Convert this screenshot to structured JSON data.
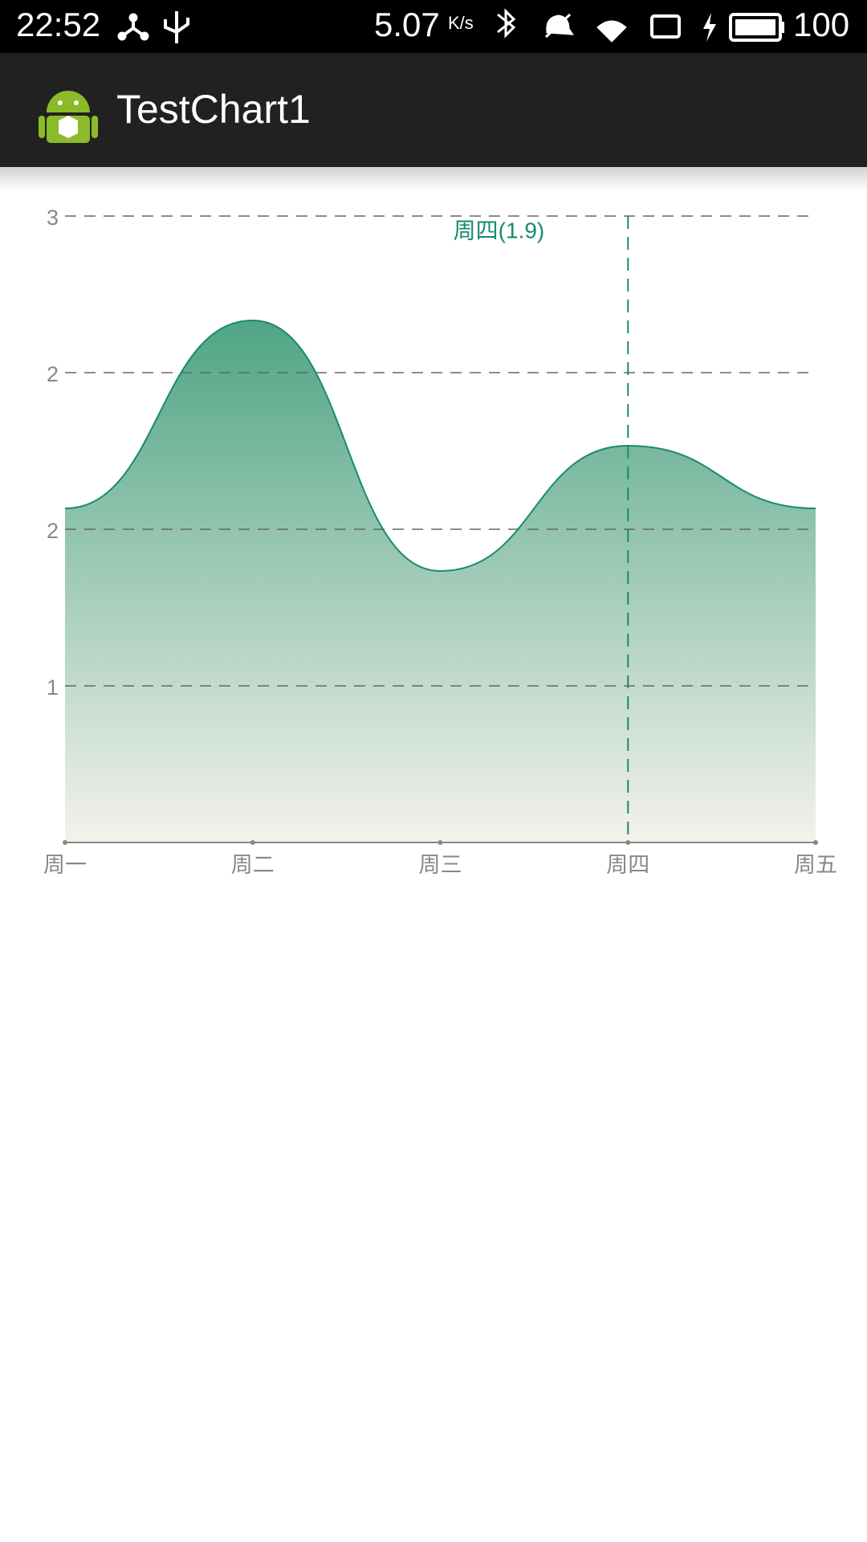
{
  "status_bar": {
    "time": "22:52",
    "speed": "5.07",
    "speed_unit": "K/s",
    "battery": "100"
  },
  "app_bar": {
    "title": "TestChart1"
  },
  "chart_data": {
    "type": "area",
    "categories": [
      "周一",
      "周二",
      "周三",
      "周四",
      "周五"
    ],
    "values": [
      1.6,
      2.5,
      1.3,
      1.9,
      1.6
    ],
    "color": "#1a8a6e",
    "ylim": [
      0,
      3
    ],
    "yticks": [
      {
        "value": 0.75,
        "label": "1"
      },
      {
        "value": 1.5,
        "label": "2"
      },
      {
        "value": 2.25,
        "label": "2"
      },
      3
    ],
    "grid": true,
    "annotation": "周四(1.9)",
    "highlight_index": 3
  }
}
